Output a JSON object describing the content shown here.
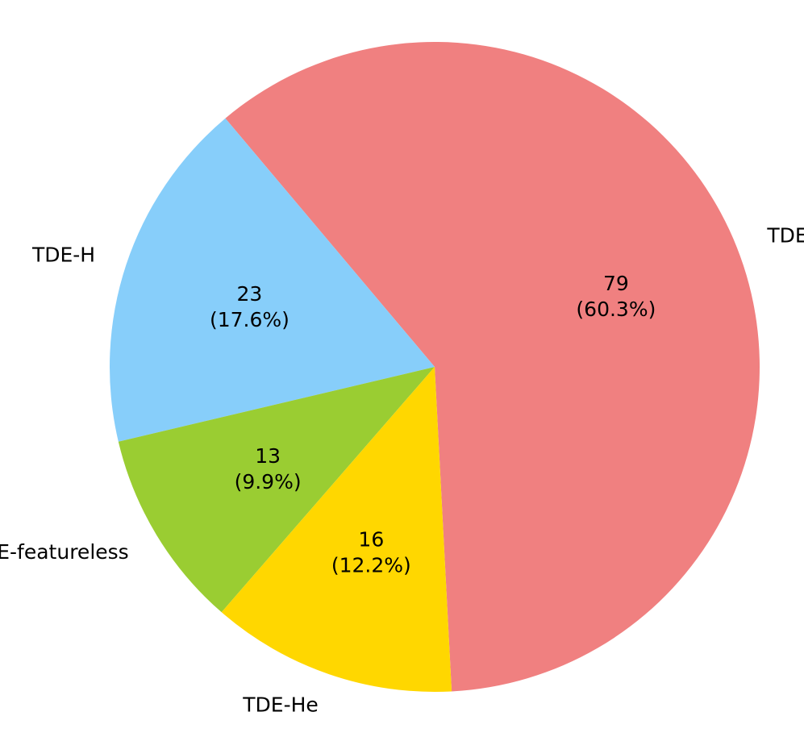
{
  "chart_data": {
    "type": "pie",
    "categories": [
      "TDE-H+He",
      "TDE-H",
      "TDE-featureless",
      "TDE-He"
    ],
    "values": [
      79,
      23,
      13,
      16
    ],
    "percent_labels": [
      "(60.3%)",
      "(17.6%)",
      "(9.9%)",
      "(12.2%)"
    ],
    "colors": [
      "#f08080",
      "#87cefa",
      "#9acd32",
      "#ffd700"
    ],
    "start_angle_deg": -87,
    "direction": "counterclockwise"
  }
}
